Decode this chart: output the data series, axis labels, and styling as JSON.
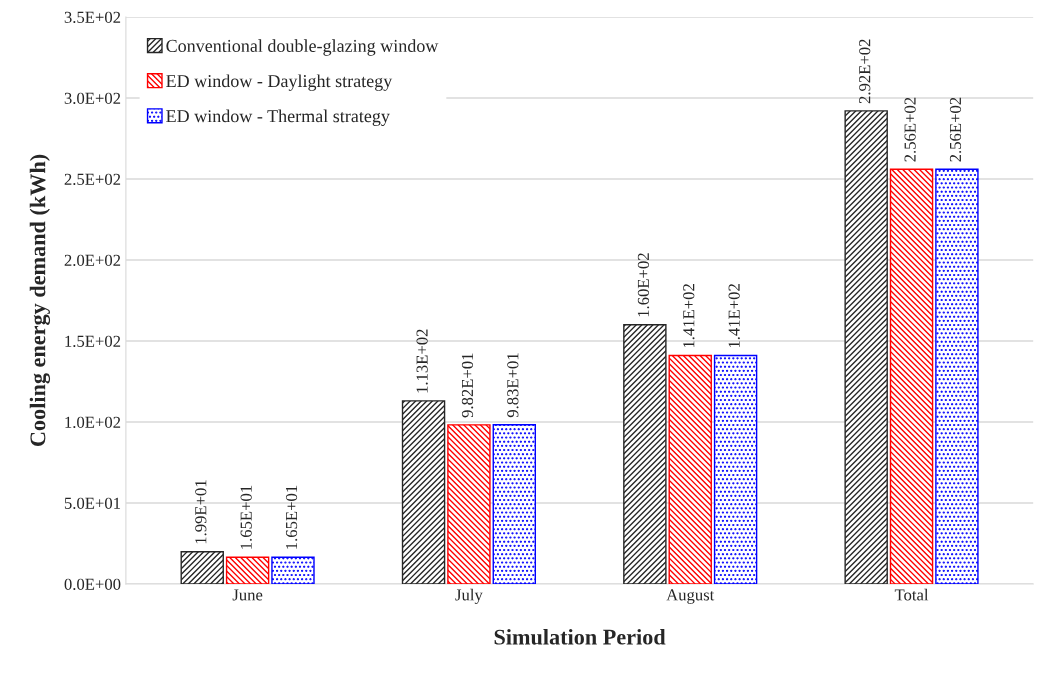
{
  "chart_data": {
    "type": "bar",
    "categories": [
      "June",
      "July",
      "August",
      "Total"
    ],
    "xlabel": "Simulation Period",
    "ylabel": "Cooling energy demand (kWh)",
    "series": [
      {
        "name": "Conventional double-glazing window",
        "color": "#262626",
        "values": [
          19.9,
          113,
          160,
          292
        ],
        "value_labels": [
          "1.99E+01",
          "1.13E+02",
          "1.60E+02",
          "2.92E+02"
        ]
      },
      {
        "name": "ED window - Daylight strategy",
        "color": "#ff0000",
        "values": [
          16.5,
          98.2,
          141,
          256
        ],
        "value_labels": [
          "1.65E+01",
          "9.82E+01",
          "1.41E+02",
          "2.56E+02"
        ]
      },
      {
        "name": "ED window - Thermal strategy",
        "color": "#0000ff",
        "values": [
          16.5,
          98.3,
          141,
          256
        ],
        "value_labels": [
          "1.65E+01",
          "9.83E+01",
          "1.41E+02",
          "2.56E+02"
        ]
      }
    ],
    "ylim": [
      0,
      350
    ],
    "yticks": [
      {
        "value": 0,
        "label": "0.0E+00"
      },
      {
        "value": 50,
        "label": "5.0E+01"
      },
      {
        "value": 100,
        "label": "1.0E+02"
      },
      {
        "value": 150,
        "label": "1.5E+02"
      },
      {
        "value": 200,
        "label": "2.0E+02"
      },
      {
        "value": 250,
        "label": "2.5E+02"
      },
      {
        "value": 300,
        "label": "3.0E+02"
      },
      {
        "value": 350,
        "label": "3.5E+02"
      }
    ],
    "grid": "y",
    "legend": "top left"
  }
}
